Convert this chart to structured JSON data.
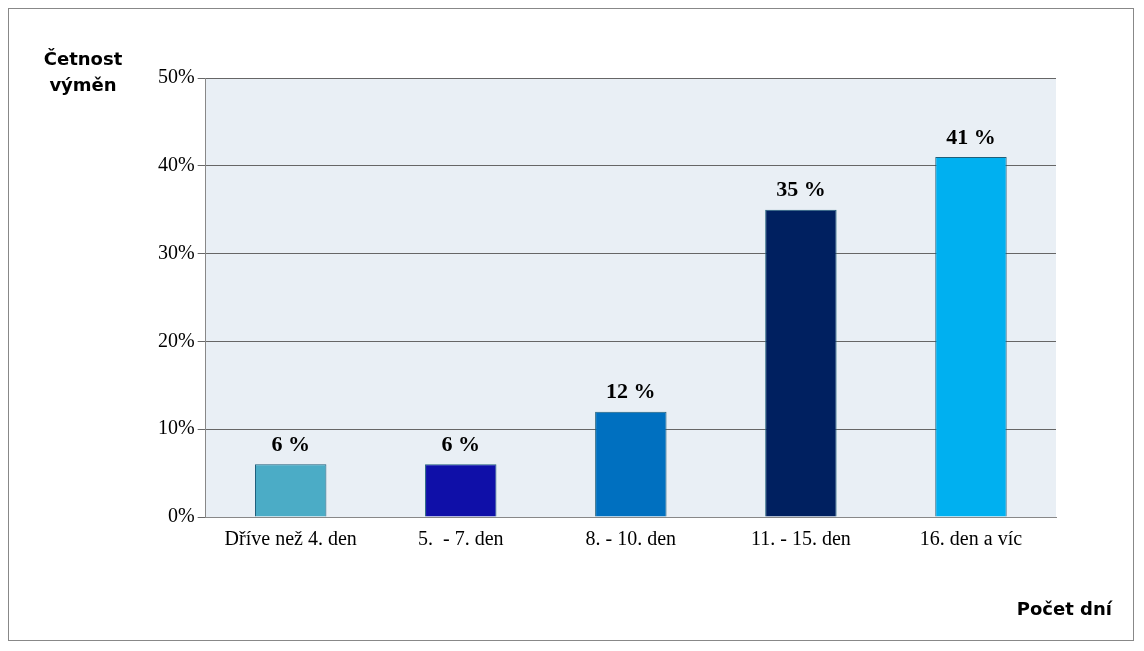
{
  "chart_data": {
    "type": "bar",
    "categories": [
      "Dříve než 4. den",
      "5.  - 7. den",
      "8. - 10. den",
      "11. - 15. den",
      "16. den a víc"
    ],
    "values": [
      6,
      6,
      12,
      35,
      41
    ],
    "colors": [
      "#4bacc6",
      "#0f0fa8",
      "#0070c0",
      "#002060",
      "#00b0f0"
    ],
    "value_labels": [
      "6 %",
      "6 %",
      "12 %",
      "35 %",
      "41 %"
    ],
    "ylabel": "Četnost výměn",
    "xlabel": "Počet dní",
    "ylim": [
      0,
      50
    ],
    "yticks": [
      {
        "value": 0,
        "label": "0%"
      },
      {
        "value": 10,
        "label": "10%"
      },
      {
        "value": 20,
        "label": "20%"
      },
      {
        "value": 30,
        "label": "30%"
      },
      {
        "value": 40,
        "label": "40%"
      },
      {
        "value": 50,
        "label": "50%"
      }
    ],
    "grid": "y",
    "legend": false
  }
}
